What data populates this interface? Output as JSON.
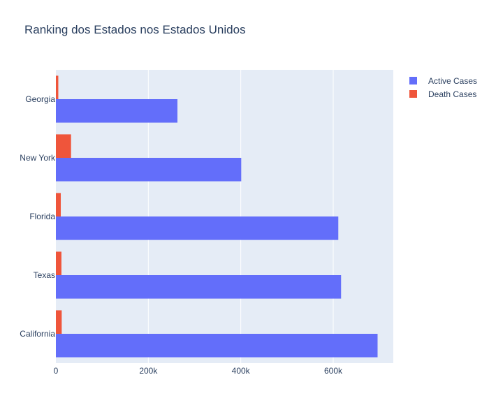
{
  "chart_data": {
    "type": "bar",
    "orientation": "horizontal",
    "title": "Ranking dos Estados nos Estados Unidos",
    "categories": [
      "California",
      "Texas",
      "Florida",
      "New York",
      "Georgia"
    ],
    "series": [
      {
        "name": "Active Cases",
        "color": "#636efa",
        "values": [
          696000,
          617000,
          611000,
          401000,
          263000
        ]
      },
      {
        "name": "Death Cases",
        "color": "#ef553b",
        "values": [
          12600,
          12000,
          10600,
          32800,
          5200
        ]
      }
    ],
    "xlim": [
      0,
      730000
    ],
    "xticks": [
      0,
      200000,
      400000,
      600000
    ],
    "xtick_labels": [
      "0",
      "200k",
      "400k",
      "600k"
    ],
    "grid": true,
    "legend_position": "top-right",
    "background": "#e5ecf6"
  }
}
